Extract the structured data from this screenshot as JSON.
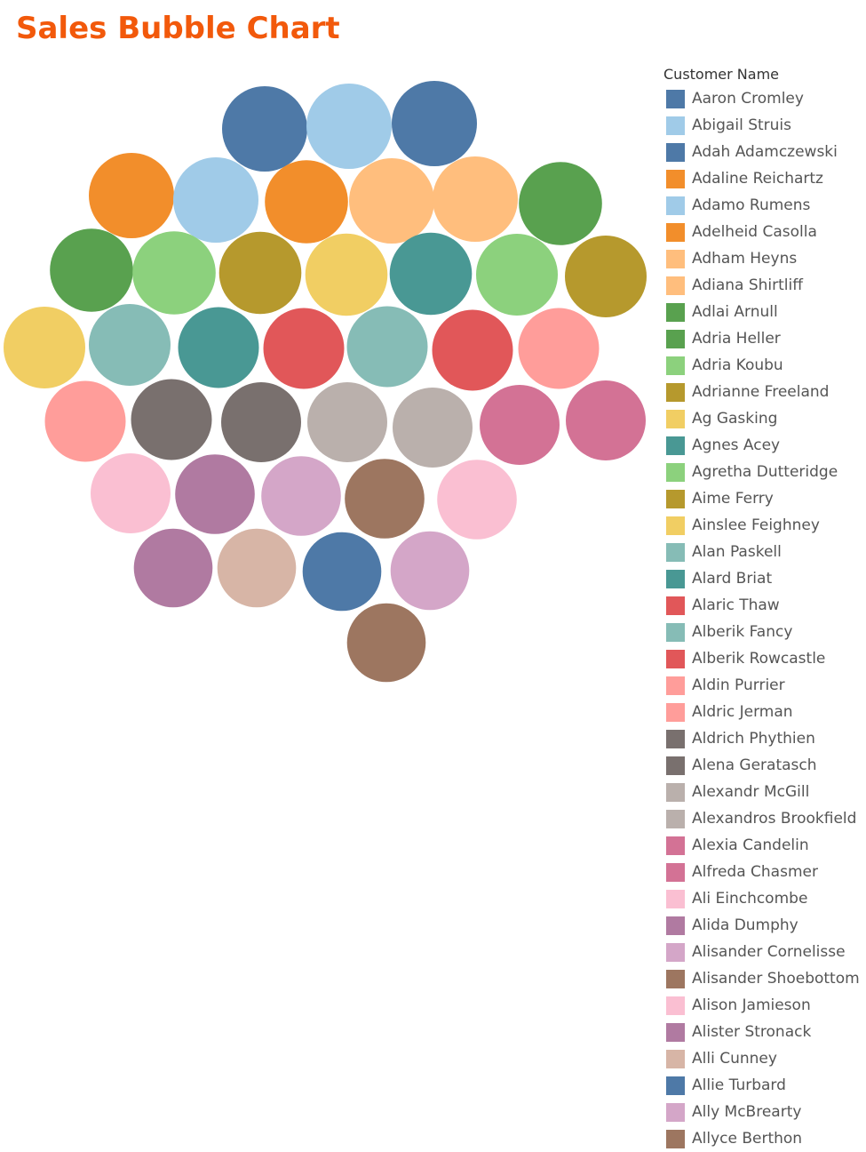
{
  "title": "Sales Bubble Chart",
  "legend": {
    "title": "Customer Name",
    "items": [
      {
        "name": "Aaron Cromley",
        "color": "#4e79a7"
      },
      {
        "name": "Abigail Struis",
        "color": "#a0cbe8"
      },
      {
        "name": "Adah Adamczewski",
        "color": "#4e79a7"
      },
      {
        "name": "Adaline Reichartz",
        "color": "#f28e2b"
      },
      {
        "name": "Adamo Rumens",
        "color": "#a0cbe8"
      },
      {
        "name": "Adelheid Casolla",
        "color": "#f28e2b"
      },
      {
        "name": "Adham Heyns",
        "color": "#ffbe7d"
      },
      {
        "name": "Adiana Shirtliff",
        "color": "#ffbe7d"
      },
      {
        "name": "Adlai Arnull",
        "color": "#59a14f"
      },
      {
        "name": "Adria Heller",
        "color": "#59a14f"
      },
      {
        "name": "Adria Koubu",
        "color": "#8cd17d"
      },
      {
        "name": "Adrianne Freeland",
        "color": "#b6992d"
      },
      {
        "name": "Ag Gasking",
        "color": "#f1ce63"
      },
      {
        "name": "Agnes Acey",
        "color": "#499894"
      },
      {
        "name": "Agretha Dutteridge",
        "color": "#8cd17d"
      },
      {
        "name": "Aime Ferry",
        "color": "#b6992d"
      },
      {
        "name": "Ainslee Feighney",
        "color": "#f1ce63"
      },
      {
        "name": "Alan Paskell",
        "color": "#86bcb6"
      },
      {
        "name": "Alard Briat",
        "color": "#499894"
      },
      {
        "name": "Alaric Thaw",
        "color": "#e15759"
      },
      {
        "name": "Alberik Fancy",
        "color": "#86bcb6"
      },
      {
        "name": "Alberik Rowcastle",
        "color": "#e15759"
      },
      {
        "name": "Aldin Purrier",
        "color": "#ff9d9a"
      },
      {
        "name": "Aldric Jerman",
        "color": "#ff9d9a"
      },
      {
        "name": "Aldrich Phythien",
        "color": "#79706e"
      },
      {
        "name": "Alena Geratasch",
        "color": "#79706e"
      },
      {
        "name": "Alexandr McGill",
        "color": "#bab0ac"
      },
      {
        "name": "Alexandros Brookfield",
        "color": "#bab0ac"
      },
      {
        "name": "Alexia Candelin",
        "color": "#d37295"
      },
      {
        "name": "Alfreda Chasmer",
        "color": "#d37295"
      },
      {
        "name": "Ali Einchcombe",
        "color": "#fabfd2"
      },
      {
        "name": "Alida Dumphy",
        "color": "#b07aa1"
      },
      {
        "name": "Alisander Cornelisse",
        "color": "#d4a6c8"
      },
      {
        "name": "Alisander Shoebottom",
        "color": "#9d7660"
      },
      {
        "name": "Alison Jamieson",
        "color": "#fabfd2"
      },
      {
        "name": "Alister Stronack",
        "color": "#b07aa1"
      },
      {
        "name": "Alli Cunney",
        "color": "#d7b5a6"
      },
      {
        "name": "Allie Turbard",
        "color": "#4e79a7"
      },
      {
        "name": "Ally McBrearty",
        "color": "#d4a6c8"
      },
      {
        "name": "Allyce Berthon",
        "color": "#9d7660"
      }
    ]
  },
  "chart_data": {
    "type": "bubble",
    "title": "Sales Bubble Chart",
    "color_field": "Customer Name",
    "size_field": "Sales",
    "bubbles": [
      {
        "name": "Aaron Cromley",
        "color": "#4e79a7",
        "size": 1.0
      },
      {
        "name": "Abigail Struis",
        "color": "#a0cbe8",
        "size": 1.0
      },
      {
        "name": "Adah Adamczewski",
        "color": "#4e79a7",
        "size": 1.0
      },
      {
        "name": "Adaline Reichartz",
        "color": "#f28e2b",
        "size": 1.0
      },
      {
        "name": "Adamo Rumens",
        "color": "#a0cbe8",
        "size": 1.0
      },
      {
        "name": "Adelheid Casolla",
        "color": "#f28e2b",
        "size": 0.95
      },
      {
        "name": "Adham Heyns",
        "color": "#ffbe7d",
        "size": 1.0
      },
      {
        "name": "Adiana Shirtliff",
        "color": "#ffbe7d",
        "size": 1.0
      },
      {
        "name": "Adlai Arnull",
        "color": "#59a14f",
        "size": 0.95
      },
      {
        "name": "Adria Heller",
        "color": "#59a14f",
        "size": 0.95
      },
      {
        "name": "Adria Koubu",
        "color": "#8cd17d",
        "size": 0.95
      },
      {
        "name": "Adrianne Freeland",
        "color": "#b6992d",
        "size": 0.93
      },
      {
        "name": "Ag Gasking",
        "color": "#f1ce63",
        "size": 0.93
      },
      {
        "name": "Agnes Acey",
        "color": "#499894",
        "size": 0.93
      },
      {
        "name": "Agretha Dutteridge",
        "color": "#8cd17d",
        "size": 0.92
      },
      {
        "name": "Aime Ferry",
        "color": "#b6992d",
        "size": 0.92
      },
      {
        "name": "Ainslee Feighney",
        "color": "#f1ce63",
        "size": 0.92
      },
      {
        "name": "Alan Paskell",
        "color": "#86bcb6",
        "size": 0.92
      },
      {
        "name": "Alard Briat",
        "color": "#499894",
        "size": 0.9
      },
      {
        "name": "Alaric Thaw",
        "color": "#e15759",
        "size": 0.9
      },
      {
        "name": "Alberik Fancy",
        "color": "#86bcb6",
        "size": 0.9
      },
      {
        "name": "Alberik Rowcastle",
        "color": "#e15759",
        "size": 0.9
      },
      {
        "name": "Aldin Purrier",
        "color": "#ff9d9a",
        "size": 0.9
      },
      {
        "name": "Aldric Jerman",
        "color": "#ff9d9a",
        "size": 0.9
      },
      {
        "name": "Aldrich Phythien",
        "color": "#79706e",
        "size": 0.9
      },
      {
        "name": "Alena Geratasch",
        "color": "#79706e",
        "size": 0.88
      },
      {
        "name": "Alexandr McGill",
        "color": "#bab0ac",
        "size": 0.88
      },
      {
        "name": "Alexandros Brookfield",
        "color": "#bab0ac",
        "size": 0.88
      },
      {
        "name": "Alexia Candelin",
        "color": "#d37295",
        "size": 0.88
      },
      {
        "name": "Alfreda Chasmer",
        "color": "#d37295",
        "size": 0.88
      },
      {
        "name": "Ali Einchcombe",
        "color": "#fabfd2",
        "size": 0.88
      },
      {
        "name": "Alida Dumphy",
        "color": "#b07aa1",
        "size": 0.87
      },
      {
        "name": "Alisander Cornelisse",
        "color": "#d4a6c8",
        "size": 0.87
      },
      {
        "name": "Alisander Shoebottom",
        "color": "#9d7660",
        "size": 0.87
      },
      {
        "name": "Alison Jamieson",
        "color": "#fabfd2",
        "size": 0.87
      },
      {
        "name": "Alister Stronack",
        "color": "#b07aa1",
        "size": 0.85
      },
      {
        "name": "Alli Cunney",
        "color": "#d7b5a6",
        "size": 0.85
      },
      {
        "name": "Allie Turbard",
        "color": "#4e79a7",
        "size": 0.85
      },
      {
        "name": "Ally McBrearty",
        "color": "#d4a6c8",
        "size": 0.85
      },
      {
        "name": "Allyce Berthon",
        "color": "#9d7660",
        "size": 0.85
      },
      {
        "name": "Aaron Cromley",
        "color": "#4e79a7",
        "size": 0.85
      },
      {
        "name": "Adaline Reichartz",
        "color": "#f28e2b",
        "size": 0.84
      },
      {
        "name": "Adham Heyns",
        "color": "#ffbe7d",
        "size": 0.84
      },
      {
        "name": "Adlai Arnull",
        "color": "#59a14f",
        "size": 0.84
      },
      {
        "name": "Adria Koubu",
        "color": "#8cd17d",
        "size": 0.84
      },
      {
        "name": "Adrianne Freeland",
        "color": "#b6992d",
        "size": 0.83
      },
      {
        "name": "Alberik Rowcastle",
        "color": "#e15759",
        "size": 0.83
      },
      {
        "name": "Aldin Purrier",
        "color": "#ff9d9a",
        "size": 0.83
      },
      {
        "name": "Alena Geratasch",
        "color": "#79706e",
        "size": 0.82
      },
      {
        "name": "Alexandros Brookfield",
        "color": "#bab0ac",
        "size": 0.82
      }
    ]
  }
}
